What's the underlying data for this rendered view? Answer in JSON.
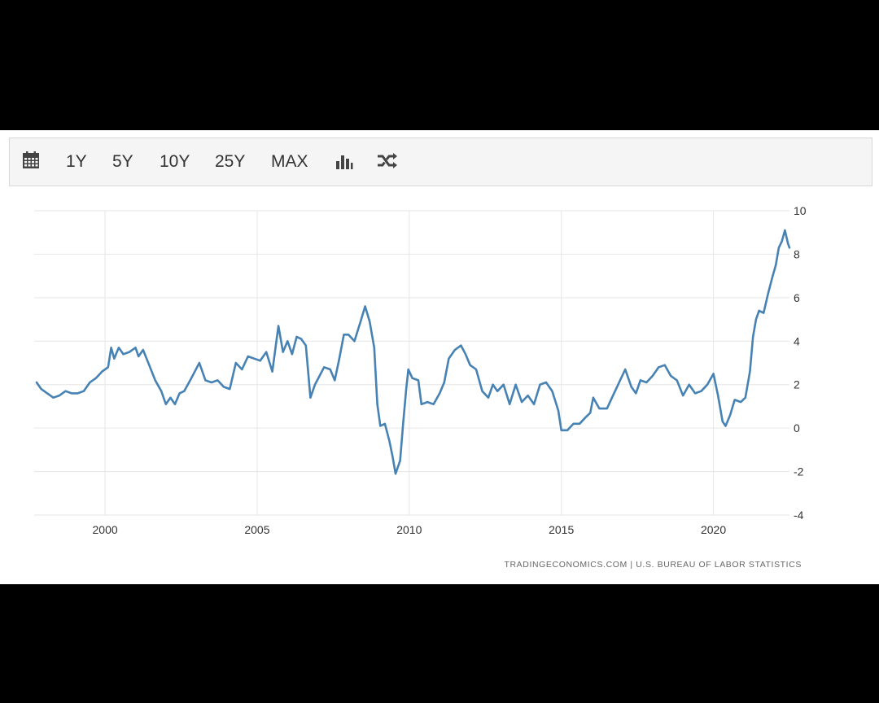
{
  "toolbar": {
    "calendar_icon": "calendar-icon",
    "ranges": [
      "1Y",
      "5Y",
      "10Y",
      "25Y",
      "MAX"
    ],
    "chart_type_icon": "bar-chart-icon",
    "compare_icon": "shuffle-icon"
  },
  "colors": {
    "line": "#4682b4",
    "grid": "#e6e6e6",
    "toolbar_bg": "#f5f5f5"
  },
  "source": "TRADINGECONOMICS.COM  |  U.S. BUREAU OF LABOR STATISTICS",
  "chart_data": {
    "type": "line",
    "title": "",
    "xlabel": "",
    "ylabel": "",
    "xlim": [
      1997.67,
      2022.5
    ],
    "ylim": [
      -4,
      10
    ],
    "x_ticks": [
      2000,
      2005,
      2010,
      2015,
      2020
    ],
    "y_ticks": [
      10,
      8,
      6,
      4,
      2,
      0,
      -2,
      -4
    ],
    "grid": true,
    "legend": "none",
    "series": [
      {
        "points": [
          [
            1997.75,
            2.1
          ],
          [
            1997.9,
            1.8
          ],
          [
            1998.1,
            1.6
          ],
          [
            1998.3,
            1.4
          ],
          [
            1998.5,
            1.5
          ],
          [
            1998.7,
            1.7
          ],
          [
            1998.9,
            1.6
          ],
          [
            1999.1,
            1.6
          ],
          [
            1999.3,
            1.7
          ],
          [
            1999.5,
            2.1
          ],
          [
            1999.7,
            2.3
          ],
          [
            1999.9,
            2.6
          ],
          [
            2000.1,
            2.8
          ],
          [
            2000.2,
            3.7
          ],
          [
            2000.3,
            3.2
          ],
          [
            2000.45,
            3.7
          ],
          [
            2000.6,
            3.4
          ],
          [
            2000.8,
            3.5
          ],
          [
            2001.0,
            3.7
          ],
          [
            2001.1,
            3.3
          ],
          [
            2001.25,
            3.6
          ],
          [
            2001.45,
            2.9
          ],
          [
            2001.65,
            2.2
          ],
          [
            2001.85,
            1.7
          ],
          [
            2002.0,
            1.1
          ],
          [
            2002.15,
            1.4
          ],
          [
            2002.3,
            1.1
          ],
          [
            2002.45,
            1.6
          ],
          [
            2002.6,
            1.7
          ],
          [
            2002.8,
            2.2
          ],
          [
            2002.95,
            2.6
          ],
          [
            2003.1,
            3.0
          ],
          [
            2003.3,
            2.2
          ],
          [
            2003.5,
            2.1
          ],
          [
            2003.7,
            2.2
          ],
          [
            2003.9,
            1.9
          ],
          [
            2004.1,
            1.8
          ],
          [
            2004.3,
            3.0
          ],
          [
            2004.5,
            2.7
          ],
          [
            2004.7,
            3.3
          ],
          [
            2004.9,
            3.2
          ],
          [
            2005.1,
            3.1
          ],
          [
            2005.3,
            3.5
          ],
          [
            2005.5,
            2.6
          ],
          [
            2005.7,
            4.7
          ],
          [
            2005.85,
            3.5
          ],
          [
            2006.0,
            4.0
          ],
          [
            2006.15,
            3.4
          ],
          [
            2006.3,
            4.2
          ],
          [
            2006.45,
            4.1
          ],
          [
            2006.6,
            3.8
          ],
          [
            2006.75,
            1.4
          ],
          [
            2006.9,
            2.0
          ],
          [
            2007.05,
            2.4
          ],
          [
            2007.2,
            2.8
          ],
          [
            2007.4,
            2.7
          ],
          [
            2007.55,
            2.2
          ],
          [
            2007.7,
            3.2
          ],
          [
            2007.85,
            4.3
          ],
          [
            2008.0,
            4.3
          ],
          [
            2008.2,
            4.0
          ],
          [
            2008.4,
            4.9
          ],
          [
            2008.55,
            5.6
          ],
          [
            2008.7,
            4.9
          ],
          [
            2008.85,
            3.7
          ],
          [
            2008.95,
            1.1
          ],
          [
            2009.05,
            0.1
          ],
          [
            2009.2,
            0.2
          ],
          [
            2009.35,
            -0.6
          ],
          [
            2009.45,
            -1.3
          ],
          [
            2009.55,
            -2.1
          ],
          [
            2009.7,
            -1.5
          ],
          [
            2009.8,
            0.2
          ],
          [
            2009.9,
            1.8
          ],
          [
            2009.97,
            2.7
          ],
          [
            2010.1,
            2.3
          ],
          [
            2010.3,
            2.2
          ],
          [
            2010.4,
            1.1
          ],
          [
            2010.6,
            1.2
          ],
          [
            2010.8,
            1.1
          ],
          [
            2011.0,
            1.6
          ],
          [
            2011.15,
            2.1
          ],
          [
            2011.3,
            3.2
          ],
          [
            2011.5,
            3.6
          ],
          [
            2011.7,
            3.8
          ],
          [
            2011.85,
            3.4
          ],
          [
            2012.0,
            2.9
          ],
          [
            2012.2,
            2.7
          ],
          [
            2012.4,
            1.7
          ],
          [
            2012.6,
            1.4
          ],
          [
            2012.75,
            2.0
          ],
          [
            2012.9,
            1.7
          ],
          [
            2013.1,
            2.0
          ],
          [
            2013.3,
            1.1
          ],
          [
            2013.5,
            2.0
          ],
          [
            2013.7,
            1.2
          ],
          [
            2013.9,
            1.5
          ],
          [
            2014.1,
            1.1
          ],
          [
            2014.3,
            2.0
          ],
          [
            2014.5,
            2.1
          ],
          [
            2014.7,
            1.7
          ],
          [
            2014.9,
            0.8
          ],
          [
            2015.0,
            -0.1
          ],
          [
            2015.2,
            -0.1
          ],
          [
            2015.4,
            0.2
          ],
          [
            2015.6,
            0.2
          ],
          [
            2015.8,
            0.5
          ],
          [
            2015.95,
            0.7
          ],
          [
            2016.05,
            1.4
          ],
          [
            2016.25,
            0.9
          ],
          [
            2016.5,
            0.9
          ],
          [
            2016.7,
            1.5
          ],
          [
            2016.9,
            2.1
          ],
          [
            2017.1,
            2.7
          ],
          [
            2017.3,
            1.9
          ],
          [
            2017.45,
            1.6
          ],
          [
            2017.6,
            2.2
          ],
          [
            2017.8,
            2.1
          ],
          [
            2018.0,
            2.4
          ],
          [
            2018.2,
            2.8
          ],
          [
            2018.4,
            2.9
          ],
          [
            2018.6,
            2.4
          ],
          [
            2018.8,
            2.2
          ],
          [
            2019.0,
            1.5
          ],
          [
            2019.2,
            2.0
          ],
          [
            2019.4,
            1.6
          ],
          [
            2019.6,
            1.7
          ],
          [
            2019.8,
            2.0
          ],
          [
            2020.0,
            2.5
          ],
          [
            2020.15,
            1.5
          ],
          [
            2020.3,
            0.3
          ],
          [
            2020.4,
            0.1
          ],
          [
            2020.55,
            0.6
          ],
          [
            2020.7,
            1.3
          ],
          [
            2020.9,
            1.2
          ],
          [
            2021.05,
            1.4
          ],
          [
            2021.2,
            2.6
          ],
          [
            2021.3,
            4.2
          ],
          [
            2021.4,
            5.0
          ],
          [
            2021.5,
            5.4
          ],
          [
            2021.65,
            5.3
          ],
          [
            2021.8,
            6.2
          ],
          [
            2021.95,
            7.0
          ],
          [
            2022.05,
            7.5
          ],
          [
            2022.15,
            8.3
          ],
          [
            2022.25,
            8.6
          ],
          [
            2022.35,
            9.1
          ],
          [
            2022.45,
            8.5
          ],
          [
            2022.5,
            8.3
          ]
        ]
      }
    ]
  }
}
